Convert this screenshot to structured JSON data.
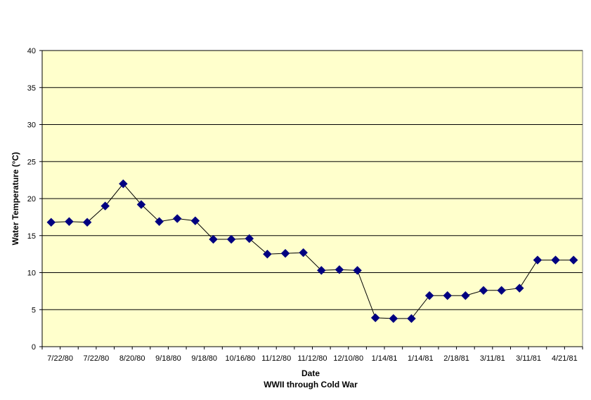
{
  "chart_data": {
    "type": "line",
    "xlabel": "Date",
    "xlabel_sub": "WWII through Cold War",
    "ylabel": "Water Temperature (°C)",
    "ylim": [
      0,
      40
    ],
    "yticks": [
      0,
      5,
      10,
      15,
      20,
      25,
      30,
      35,
      40
    ],
    "xtick_labels": [
      "7/22/80",
      "7/22/80",
      "8/20/80",
      "9/18/80",
      "9/18/80",
      "10/16/80",
      "11/12/80",
      "11/12/80",
      "12/10/80",
      "1/14/81",
      "1/14/81",
      "2/18/81",
      "3/11/81",
      "3/11/81",
      "4/21/81"
    ],
    "grid": true,
    "legend": "none",
    "marker": "diamond",
    "series": [
      {
        "values": [
          16.8,
          16.9,
          16.8,
          19.0,
          22.0,
          19.2,
          16.9,
          17.3,
          17.0,
          14.5,
          14.5,
          14.6,
          12.5,
          12.6,
          12.7,
          10.3,
          10.4,
          10.3,
          3.9,
          3.8,
          3.8,
          6.9,
          6.9,
          6.9,
          7.6,
          7.6,
          7.9,
          11.7,
          11.7,
          11.7
        ]
      }
    ],
    "colors": {
      "plot_background": "#ffffcc",
      "series": "#000080",
      "gridline": "#000000"
    }
  }
}
